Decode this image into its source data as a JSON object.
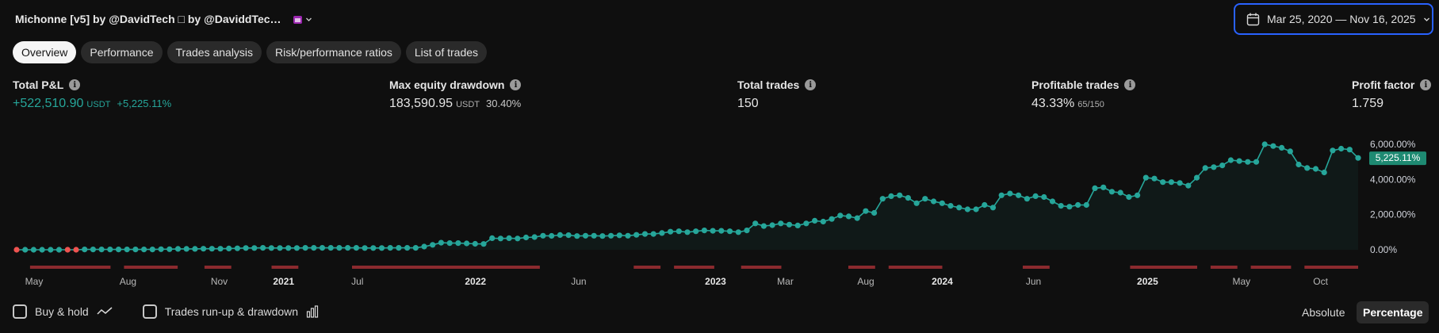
{
  "header": {
    "title": "Michonne [v5] by @DavidTech □ by @DaviddTec…",
    "date_range": "Mar 25, 2020 — Nov 16, 2025",
    "accent_color": "#2962ff"
  },
  "tabs": [
    {
      "label": "Overview",
      "active": true
    },
    {
      "label": "Performance",
      "active": false
    },
    {
      "label": "Trades analysis",
      "active": false
    },
    {
      "label": "Risk/performance ratios",
      "active": false
    },
    {
      "label": "List of trades",
      "active": false
    }
  ],
  "stats": {
    "total_pnl": {
      "label": "Total P&L",
      "value": "+522,510.90",
      "unit": "USDT",
      "sub": "+5,225.11%"
    },
    "max_drawdown": {
      "label": "Max equity drawdown",
      "value": "183,590.95",
      "unit": "USDT",
      "sub": "30.40%"
    },
    "total_trades": {
      "label": "Total trades",
      "value": "150"
    },
    "profitable_trades": {
      "label": "Profitable trades",
      "value": "43.33%",
      "sub": "65/150"
    },
    "profit_factor": {
      "label": "Profit factor",
      "value": "1.759"
    }
  },
  "chart_data": {
    "type": "line",
    "ylabel_ticks": [
      "0.00%",
      "2,000.00%",
      "4,000.00%",
      "6,000.00%"
    ],
    "ylim": [
      0,
      6000
    ],
    "last_value_label": "5,225.11%",
    "colors": {
      "line": "#26a69a",
      "loss": "#ef5350",
      "drawdown": "#8b2a2e",
      "badge": "#1e8a72"
    },
    "x_ticks": [
      {
        "label": "May",
        "bold": false
      },
      {
        "label": "Aug",
        "bold": false
      },
      {
        "label": "Nov",
        "bold": false
      },
      {
        "label": "2021",
        "bold": true
      },
      {
        "label": "Jul",
        "bold": false
      },
      {
        "label": "2022",
        "bold": true
      },
      {
        "label": "Jun",
        "bold": false
      },
      {
        "label": "2023",
        "bold": true
      },
      {
        "label": "Mar",
        "bold": false
      },
      {
        "label": "Aug",
        "bold": false
      },
      {
        "label": "2024",
        "bold": true
      },
      {
        "label": "Jun",
        "bold": false
      },
      {
        "label": "2025",
        "bold": true
      },
      {
        "label": "May",
        "bold": false
      },
      {
        "label": "Oct",
        "bold": false
      }
    ],
    "x_tick_fractions": [
      0.013,
      0.083,
      0.151,
      0.199,
      0.254,
      0.342,
      0.419,
      0.521,
      0.573,
      0.633,
      0.69,
      0.758,
      0.843,
      0.913,
      0.972
    ],
    "series": [
      {
        "values": [
          0,
          0,
          0,
          0,
          0,
          0,
          0,
          0,
          20,
          20,
          20,
          20,
          20,
          20,
          20,
          20,
          20,
          30,
          30,
          50,
          50,
          50,
          60,
          60,
          60,
          70,
          80,
          100,
          100,
          110,
          100,
          100,
          100,
          100,
          110,
          110,
          110,
          110,
          110,
          110,
          110,
          100,
          100,
          100,
          110,
          110,
          110,
          110,
          180,
          280,
          400,
          380,
          380,
          360,
          340,
          330,
          660,
          640,
          660,
          640,
          700,
          720,
          800,
          790,
          840,
          830,
          780,
          800,
          800,
          780,
          800,
          820,
          800,
          850,
          900,
          900,
          950,
          1030,
          1050,
          1000,
          1050,
          1100,
          1080,
          1080,
          1050,
          1000,
          1100,
          1500,
          1350,
          1400,
          1500,
          1430,
          1380,
          1500,
          1650,
          1600,
          1750,
          1950,
          1900,
          1800,
          2200,
          2100,
          2900,
          3050,
          3100,
          2950,
          2650,
          2900,
          2750,
          2650,
          2500,
          2400,
          2300,
          2300,
          2550,
          2400,
          3100,
          3200,
          3100,
          2900,
          3050,
          3000,
          2750,
          2500,
          2450,
          2550,
          2550,
          3500,
          3550,
          3300,
          3250,
          3000,
          3100,
          4100,
          4050,
          3850,
          3850,
          3800,
          3650,
          4100,
          4650,
          4700,
          4800,
          5100,
          5050,
          5000,
          5000,
          6000,
          5900,
          5800,
          5600,
          4850,
          4650,
          4600,
          4400,
          5650,
          5750,
          5700,
          5225.11
        ],
        "loss_indices": [
          0,
          6,
          7
        ]
      }
    ],
    "drawdown_segments": [
      [
        0.01,
        0.07
      ],
      [
        0.08,
        0.12
      ],
      [
        0.14,
        0.16
      ],
      [
        0.19,
        0.21
      ],
      [
        0.25,
        0.39
      ],
      [
        0.46,
        0.48
      ],
      [
        0.49,
        0.52
      ],
      [
        0.54,
        0.57
      ],
      [
        0.62,
        0.64
      ],
      [
        0.65,
        0.69
      ],
      [
        0.75,
        0.77
      ],
      [
        0.83,
        0.88
      ],
      [
        0.89,
        0.91
      ],
      [
        0.92,
        0.95
      ],
      [
        0.96,
        1.0
      ]
    ]
  },
  "bottom": {
    "buy_hold": "Buy & hold",
    "runup": "Trades run-up & drawdown",
    "absolute": "Absolute",
    "percentage": "Percentage"
  }
}
